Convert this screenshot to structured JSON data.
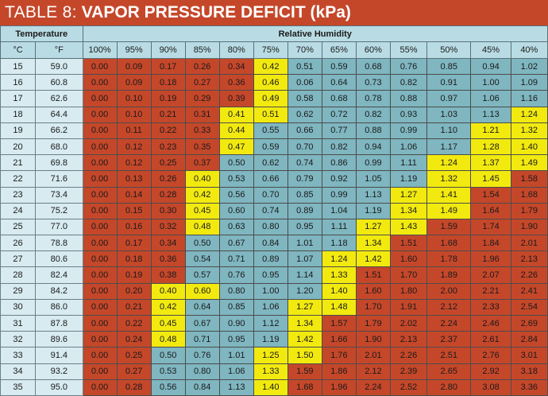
{
  "title": {
    "prefix": "TABLE 8:",
    "main": "VAPOR PRESSURE DEFICIT (kPa)"
  },
  "header": {
    "temperature": "Temperature",
    "humidity": "Relative Humidity",
    "c": "°C",
    "f": "°F"
  },
  "humidity_levels": [
    "100%",
    "95%",
    "90%",
    "85%",
    "80%",
    "75%",
    "70%",
    "65%",
    "60%",
    "55%",
    "50%",
    "45%",
    "40%"
  ],
  "colors": {
    "red": "#c5472a",
    "yellow": "#f2ea0f",
    "blue": "#7fb6c0",
    "header": "#b9dce4",
    "temp": "#d7ebf0"
  },
  "rows": [
    {
      "c": "15",
      "f": "59.0",
      "vals": [
        "0.00",
        "0.09",
        "0.17",
        "0.26",
        "0.34",
        "0.42",
        "0.51",
        "0.59",
        "0.68",
        "0.76",
        "0.85",
        "0.94",
        "1.02"
      ],
      "colors": "rrrrrybbbbbbb"
    },
    {
      "c": "16",
      "f": "60.8",
      "vals": [
        "0.00",
        "0.09",
        "0.18",
        "0.27",
        "0.36",
        "0.46",
        "0.06",
        "0.64",
        "0.73",
        "0.82",
        "0.91",
        "1.00",
        "1.09"
      ],
      "colors": "rrrrrybbbbbbb"
    },
    {
      "c": "17",
      "f": "62.6",
      "vals": [
        "0.00",
        "0.10",
        "0.19",
        "0.29",
        "0.39",
        "0.49",
        "0.58",
        "0.68",
        "0.78",
        "0.88",
        "0.97",
        "1.06",
        "1.16"
      ],
      "colors": "rrrrrybbbbbbb"
    },
    {
      "c": "18",
      "f": "64.4",
      "vals": [
        "0.00",
        "0.10",
        "0.21",
        "0.31",
        "0.41",
        "0.51",
        "0.62",
        "0.72",
        "0.82",
        "0.93",
        "1.03",
        "1.13",
        "1.24"
      ],
      "colors": "rrrryybbbbbby"
    },
    {
      "c": "19",
      "f": "66.2",
      "vals": [
        "0.00",
        "0.11",
        "0.22",
        "0.33",
        "0.44",
        "0.55",
        "0.66",
        "0.77",
        "0.88",
        "0.99",
        "1.10",
        "1.21",
        "1.32"
      ],
      "colors": "rrrrybbbbbbyy"
    },
    {
      "c": "20",
      "f": "68.0",
      "vals": [
        "0.00",
        "0.12",
        "0.23",
        "0.35",
        "0.47",
        "0.59",
        "0.70",
        "0.82",
        "0.94",
        "1.06",
        "1.17",
        "1.28",
        "1.40"
      ],
      "colors": "rrrrybbbbbbyy"
    },
    {
      "c": "21",
      "f": "69.8",
      "vals": [
        "0.00",
        "0.12",
        "0.25",
        "0.37",
        "0.50",
        "0.62",
        "0.74",
        "0.86",
        "0.99",
        "1.11",
        "1.24",
        "1.37",
        "1.49"
      ],
      "colors": "rrrrbbbbbbyyy"
    },
    {
      "c": "22",
      "f": "71.6",
      "vals": [
        "0.00",
        "0.13",
        "0.26",
        "0.40",
        "0.53",
        "0.66",
        "0.79",
        "0.92",
        "1.05",
        "1.19",
        "1.32",
        "1.45",
        "1.58"
      ],
      "colors": "rrrybbbbbbyyr"
    },
    {
      "c": "23",
      "f": "73.4",
      "vals": [
        "0.00",
        "0.14",
        "0.28",
        "0.42",
        "0.56",
        "0.70",
        "0.85",
        "0.99",
        "1.13",
        "1.27",
        "1.41",
        "1.54",
        "1.68"
      ],
      "colors": "rrrybbbbbyyrr"
    },
    {
      "c": "24",
      "f": "75.2",
      "vals": [
        "0.00",
        "0.15",
        "0.30",
        "0.45",
        "0.60",
        "0.74",
        "0.89",
        "1.04",
        "1.19",
        "1.34",
        "1.49",
        "1.64",
        "1.79"
      ],
      "colors": "rrrybbbbbyyrr"
    },
    {
      "c": "25",
      "f": "77.0",
      "vals": [
        "0.00",
        "0.16",
        "0.32",
        "0.48",
        "0.63",
        "0.80",
        "0.95",
        "1.11",
        "1.27",
        "1.43",
        "1.59",
        "1.74",
        "1.90"
      ],
      "colors": "rrrybbbbyyrrr"
    },
    {
      "c": "26",
      "f": "78.8",
      "vals": [
        "0.00",
        "0.17",
        "0.34",
        "0.50",
        "0.67",
        "0.84",
        "1.01",
        "1.18",
        "1.34",
        "1.51",
        "1.68",
        "1.84",
        "2.01"
      ],
      "colors": "rrrbbbbbyrrrr"
    },
    {
      "c": "27",
      "f": "80.6",
      "vals": [
        "0.00",
        "0.18",
        "0.36",
        "0.54",
        "0.71",
        "0.89",
        "1.07",
        "1.24",
        "1.42",
        "1.60",
        "1.78",
        "1.96",
        "2.13"
      ],
      "colors": "rrrbbbbyyrrrr"
    },
    {
      "c": "28",
      "f": "82.4",
      "vals": [
        "0.00",
        "0.19",
        "0.38",
        "0.57",
        "0.76",
        "0.95",
        "1.14",
        "1.33",
        "1.51",
        "1.70",
        "1.89",
        "2.07",
        "2.26"
      ],
      "colors": "rrrbbbbyrrrrr"
    },
    {
      "c": "29",
      "f": "84.2",
      "vals": [
        "0.00",
        "0.20",
        "0.40",
        "0.60",
        "0.80",
        "1.00",
        "1.20",
        "1.40",
        "1.60",
        "1.80",
        "2.00",
        "2.21",
        "2.41"
      ],
      "colors": "rryybbbyrrrrr"
    },
    {
      "c": "30",
      "f": "86.0",
      "vals": [
        "0.00",
        "0.21",
        "0.42",
        "0.64",
        "0.85",
        "1.06",
        "1.27",
        "1.48",
        "1.70",
        "1.91",
        "2.12",
        "2.33",
        "2.54"
      ],
      "colors": "rrybbbyyrrrrr"
    },
    {
      "c": "31",
      "f": "87.8",
      "vals": [
        "0.00",
        "0.22",
        "0.45",
        "0.67",
        "0.90",
        "1.12",
        "1.34",
        "1.57",
        "1.79",
        "2.02",
        "2.24",
        "2.46",
        "2.69"
      ],
      "colors": "rrybbbyrrrrrr"
    },
    {
      "c": "32",
      "f": "89.6",
      "vals": [
        "0.00",
        "0.24",
        "0.48",
        "0.71",
        "0.95",
        "1.19",
        "1.42",
        "1.66",
        "1.90",
        "2.13",
        "2.37",
        "2.61",
        "2.84"
      ],
      "colors": "rrybbbyrrrrrr"
    },
    {
      "c": "33",
      "f": "91.4",
      "vals": [
        "0.00",
        "0.25",
        "0.50",
        "0.76",
        "1.01",
        "1.25",
        "1.50",
        "1.76",
        "2.01",
        "2.26",
        "2.51",
        "2.76",
        "3.01"
      ],
      "colors": "rrbbbyyrrrrrr"
    },
    {
      "c": "34",
      "f": "93.2",
      "vals": [
        "0.00",
        "0.27",
        "0.53",
        "0.80",
        "1.06",
        "1.33",
        "1.59",
        "1.86",
        "2.12",
        "2.39",
        "2.65",
        "2.92",
        "3.18"
      ],
      "colors": "rrbbbyrrrrrrr"
    },
    {
      "c": "35",
      "f": "95.0",
      "vals": [
        "0.00",
        "0.28",
        "0.56",
        "0.84",
        "1.13",
        "1.40",
        "1.68",
        "1.96",
        "2.24",
        "2.52",
        "2.80",
        "3.08",
        "3.36"
      ],
      "colors": "rrbbbyrrrrrrr"
    }
  ]
}
